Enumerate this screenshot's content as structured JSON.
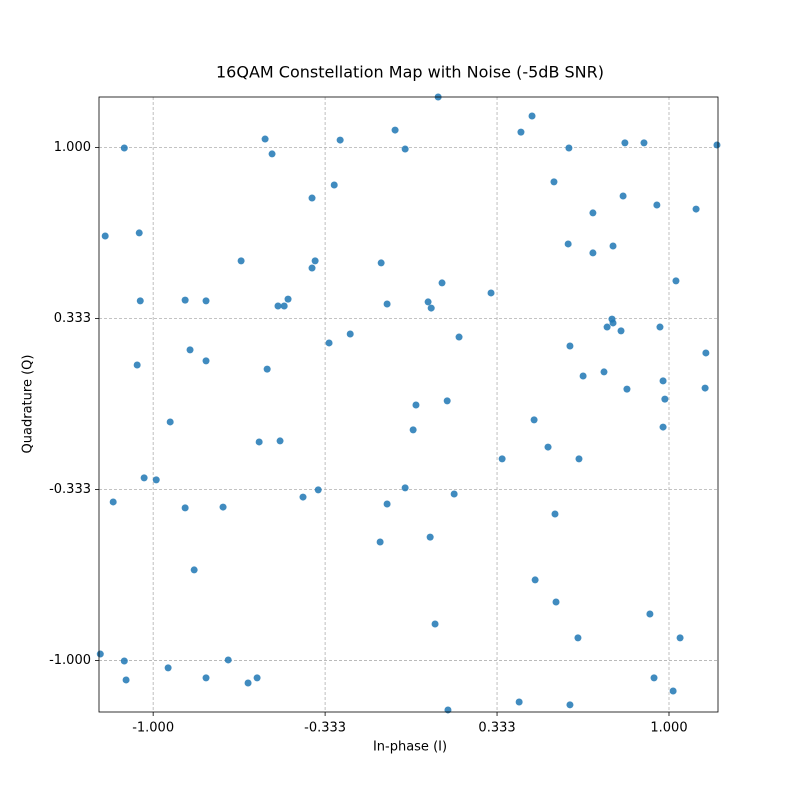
{
  "chart_data": {
    "type": "scatter",
    "title": "16QAM Constellation Map with Noise (-5dB SNR)",
    "x_label": "In-phase (I)",
    "y_label": "Quadrature (Q)",
    "color": "#1f77b4",
    "grid": true,
    "xlim": [
      -1.21,
      1.19
    ],
    "ylim": [
      -1.201,
      1.197
    ],
    "xticks": [
      {
        "value": -1,
        "label": "-1.000"
      },
      {
        "value": -0.3333,
        "label": "-0.333"
      },
      {
        "value": 0.3333,
        "label": "0.333"
      },
      {
        "value": 1,
        "label": "1.000"
      }
    ],
    "yticks": [
      {
        "value": -1,
        "label": "-1.000"
      },
      {
        "value": -0.3333,
        "label": "-0.333"
      },
      {
        "value": 0.3333,
        "label": "0.333"
      },
      {
        "value": 1,
        "label": "1.000"
      }
    ],
    "x": [
      0.105,
      -0.566,
      -1.112,
      -0.539,
      -0.275,
      -0.062,
      -0.023,
      0.426,
      0.469,
      0.612,
      0.829,
      0.903,
      1.186,
      -0.298,
      -0.384,
      0.554,
      0.822,
      0.705,
      0.953,
      1.105,
      -1.186,
      -1.054,
      -0.659,
      -0.372,
      -0.384,
      -0.116,
      0.609,
      0.705,
      0.783,
      1.027,
      0.12,
      0.31,
      -1.05,
      -0.876,
      -0.795,
      -0.477,
      -0.516,
      -0.492,
      -0.093,
      0.066,
      0.078,
      0.779,
      0.783,
      0.76,
      0.814,
      0.965,
      -0.236,
      0.186,
      -0.318,
      -0.857,
      -0.795,
      0.616,
      1.143,
      -1.062,
      -0.558,
      0.667,
      0.748,
      0.977,
      0.837,
      1.14,
      0.14,
      0.019,
      0.984,
      -0.934,
      0.477,
      0.008,
      0.977,
      -0.589,
      -0.508,
      0.531,
      0.353,
      0.651,
      -1.035,
      -0.988,
      -0.36,
      -0.023,
      -0.419,
      0.167,
      -1.155,
      -0.876,
      -0.729,
      -0.093,
      0.558,
      -0.12,
      0.074,
      -0.841,
      0.481,
      0.562,
      0.926,
      0.093,
      0.647,
      1.043,
      -1.205,
      -1.112,
      -0.942,
      -0.709,
      -1.105,
      -0.795,
      -0.632,
      -0.597,
      0.942,
      1.016,
      0.419,
      0.616,
      0.143
    ],
    "values": [
      1.197,
      1.033,
      0.998,
      0.975,
      1.029,
      1.068,
      0.994,
      1.06,
      1.123,
      0.998,
      1.018,
      1.018,
      1.01,
      0.854,
      0.803,
      0.866,
      0.811,
      0.745,
      0.776,
      0.76,
      0.655,
      0.667,
      0.558,
      0.558,
      0.53,
      0.55,
      0.624,
      0.589,
      0.616,
      0.48,
      0.472,
      0.433,
      0.402,
      0.405,
      0.402,
      0.409,
      0.382,
      0.382,
      0.39,
      0.398,
      0.374,
      0.331,
      0.316,
      0.3,
      0.285,
      0.3,
      0.273,
      0.261,
      0.238,
      0.211,
      0.168,
      0.226,
      0.199,
      0.152,
      0.136,
      0.109,
      0.125,
      0.09,
      0.058,
      0.062,
      0.012,
      -0.004,
      0.019,
      -0.07,
      -0.062,
      -0.101,
      -0.09,
      -0.148,
      -0.144,
      -0.168,
      -0.214,
      -0.214,
      -0.288,
      -0.296,
      -0.335,
      -0.327,
      -0.363,
      -0.351,
      -0.382,
      -0.405,
      -0.402,
      -0.39,
      -0.429,
      -0.538,
      -0.519,
      -0.647,
      -0.686,
      -0.772,
      -0.819,
      -0.858,
      -0.912,
      -0.912,
      -0.975,
      -1.002,
      -1.029,
      -0.998,
      -1.076,
      -1.068,
      -1.088,
      -1.068,
      -1.068,
      -1.119,
      -1.162,
      -1.173,
      -1.193
    ]
  }
}
